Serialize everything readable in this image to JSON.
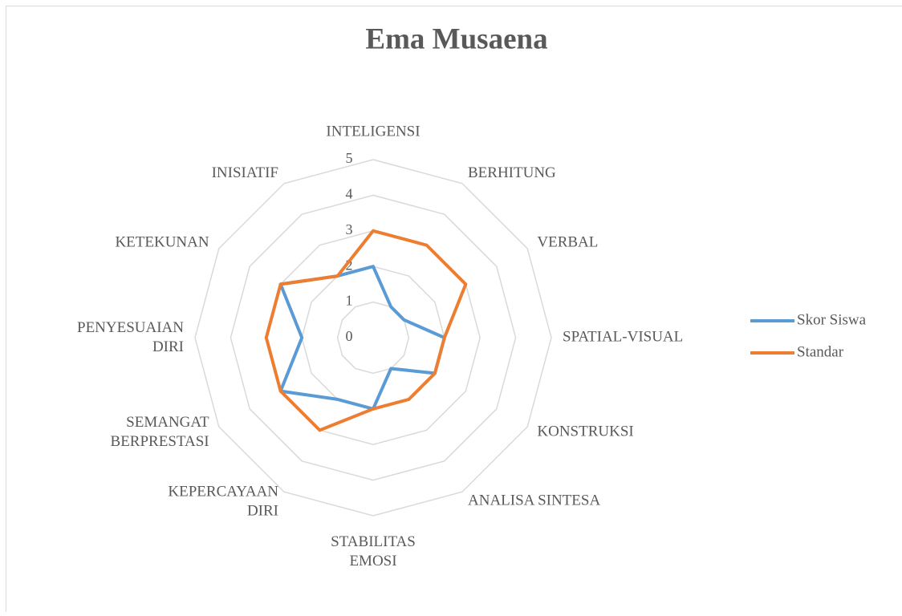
{
  "chart_data": {
    "type": "radar",
    "title": "Ema Musaena",
    "categories": [
      "INTELIGENSI",
      "BERHITUNG",
      "VERBAL",
      "SPATIAL-VISUAL",
      "KONSTRUKSI",
      "ANALISA SINTESA",
      "STABILITAS EMOSI",
      "KEPERCAYAAN DIRI",
      "SEMANGAT BERPRESTASI",
      "PENYESUAIAN DIRI",
      "KETEKUNAN",
      "INISIATIF"
    ],
    "series": [
      {
        "name": "Skor Siswa",
        "color": "#5b9bd5",
        "values": [
          2,
          1,
          1,
          2,
          2,
          1,
          2,
          2,
          3,
          2,
          3,
          2
        ]
      },
      {
        "name": "Standar",
        "color": "#ed7d31",
        "values": [
          3,
          3,
          3,
          2,
          2,
          2,
          2,
          3,
          3,
          3,
          3,
          2
        ]
      }
    ],
    "rlim": [
      0,
      5
    ],
    "rticks": [
      0,
      1,
      2,
      3,
      4,
      5
    ],
    "grid": true,
    "legend": "right"
  }
}
